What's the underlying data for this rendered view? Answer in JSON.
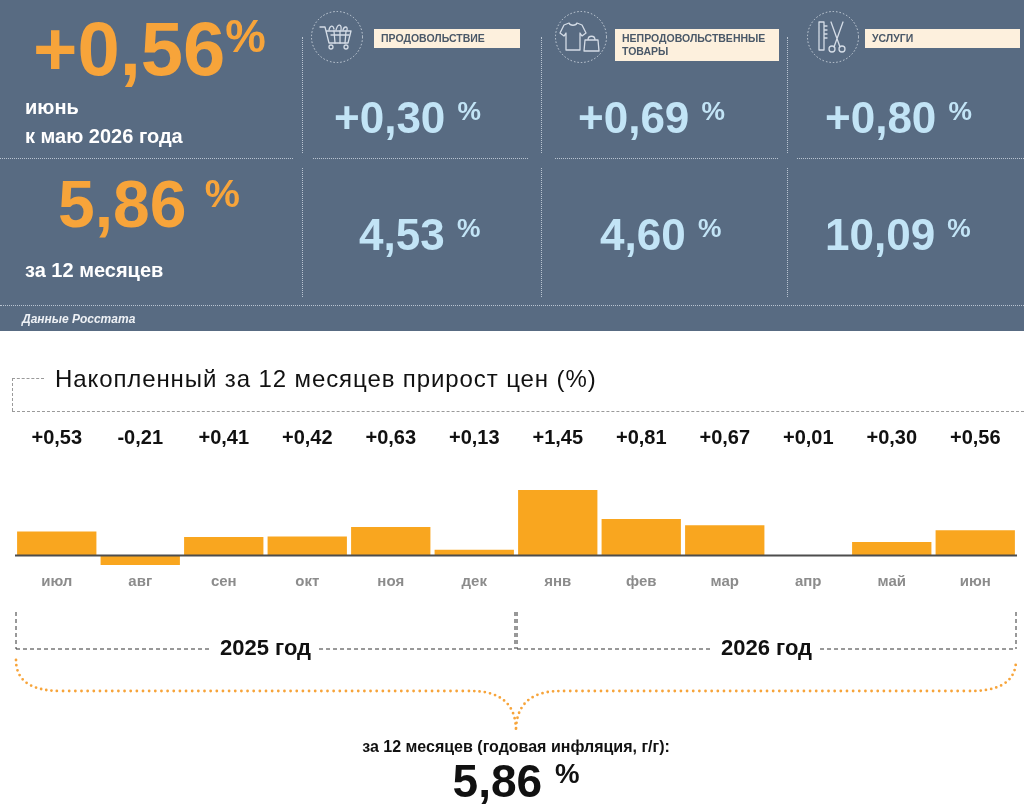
{
  "chart_data": [
    {
      "type": "other",
      "annotations": [
        "+0,56$^{%}$",
        "июнь",
        "к маю 2026 года",
        "5,86 $^{%}$",
        "за 12 месяцев",
        "ПРОДОВОЛЬСТВИЕ",
        "+0,30 $^{%}$",
        "4,53 $^{%}$",
        "НЕПРОДОВОЛЬСТВЕННЫЕ ТОВАРЫ",
        "+0,69 $^{%}$",
        "4,60 $^{%}$",
        "УСЛУГИ",
        "+0,80 $^{%}$",
        "10,09 $^{%}$",
        "Данные Росстата"
      ]
    },
    {
      "type": "bar",
      "title": "Накопленный за 12 месяцев прирост цен (%)",
      "categories": [
        "июл",
        "авг",
        "сен",
        "окт",
        "ноя",
        "дек",
        "янв",
        "фев",
        "мар",
        "апр",
        "май",
        "июн"
      ],
      "values": [
        0.53,
        -0.21,
        0.41,
        0.42,
        0.63,
        0.13,
        1.45,
        0.81,
        0.67,
        0.01,
        0.3,
        0.56
      ],
      "color": "#f9a61f",
      "value_labels": [
        "+0,53",
        "-0,21",
        "+0,41",
        "+0,42",
        "+0,63",
        "+0,13",
        "+1,45",
        "+0,81",
        "+0,67",
        "+0,01",
        "+0,30",
        "+0,56"
      ],
      "annotations": [
        "2025 год",
        "2026 год",
        "за 12 месяцев (годовая инфляция, г/г):",
        "5,86 $^{%}$"
      ]
    }
  ]
}
